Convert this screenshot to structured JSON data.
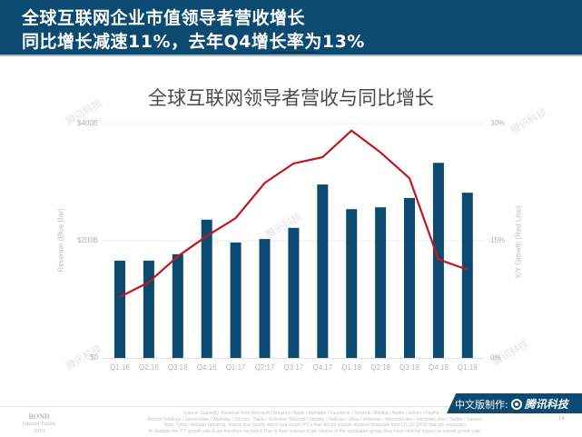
{
  "header": {
    "line1": "全球互联网企业市值领导者营收增长",
    "line2": "同比增长减速11%，去年Q4增长率为13%"
  },
  "chart_data": {
    "type": "bar+line",
    "title": "全球互联网领导者营收与同比增长",
    "categories": [
      "Q1:16",
      "Q2:16",
      "Q3:16",
      "Q4:16",
      "Q1:17",
      "Q2:17",
      "Q3:17",
      "Q4:17",
      "Q1:18",
      "Q2:18",
      "Q3:18",
      "Q4:18",
      "Q1:19"
    ],
    "series": [
      {
        "name": "Revenue (Blue Bar)",
        "type": "bar",
        "axis": "left",
        "unit": "$B",
        "color": "#0d4a72",
        "values": [
          166,
          166,
          177,
          236,
          197,
          203,
          222,
          296,
          254,
          257,
          273,
          333,
          282
        ]
      },
      {
        "name": "Y/Y Growth (Red Line)",
        "type": "line",
        "axis": "right",
        "unit": "%",
        "color": "#c0161d",
        "values": [
          7.8,
          9.7,
          13.0,
          15.6,
          17.9,
          22.4,
          24.9,
          25.7,
          29.1,
          26.3,
          23.0,
          12.6,
          11.3
        ]
      }
    ],
    "ylabel_left": "Revenue (Blue Bar)",
    "ylabel_right": "Y/Y Growth (Red Line)",
    "left_ticks": [
      "$0",
      "$200B",
      "$400B"
    ],
    "right_ticks": [
      "0%",
      "15%",
      "30%"
    ],
    "ylim_left": [
      0,
      400
    ],
    "ylim_right": [
      0,
      30
    ],
    "grid": true,
    "legend": "none (axis titles describe series)"
  },
  "footer": {
    "bond_line1": "BOND",
    "bond_line2": "Internet Trends",
    "bond_line3": "2019",
    "source_lines": [
      "Source: CapitalIQ. Revenue from Microsoft / Amazon / Apple / Alphabet / Facebook / Tencent / Alibaba / Netflix / Adobe / PayPal / ...",
      "Recruit Holdings / ServiceNow / Workday / JD.com / Baidu / Activision Blizzard / Shopify / NetEase / eBay / Atlassian / MercadoLibre / Electronic Arts / Twitter / Square.",
      "Note: *Uber, Meituan Dianping, Xiaomi and Spotify which had recent IPOs that did not provide detailed financials from Q1:15-Q4:16 that are necessary",
      "to illustrate the Y/Y growth rate & are therefore excluded. Due to their revenue scale relative to the cumulative group, they have minimal impact on overall growth rate."
    ],
    "page_number": "14",
    "badge_prefix": "中文版制作:",
    "badge_brand": "腾讯科技"
  },
  "watermark": "腾讯科技"
}
